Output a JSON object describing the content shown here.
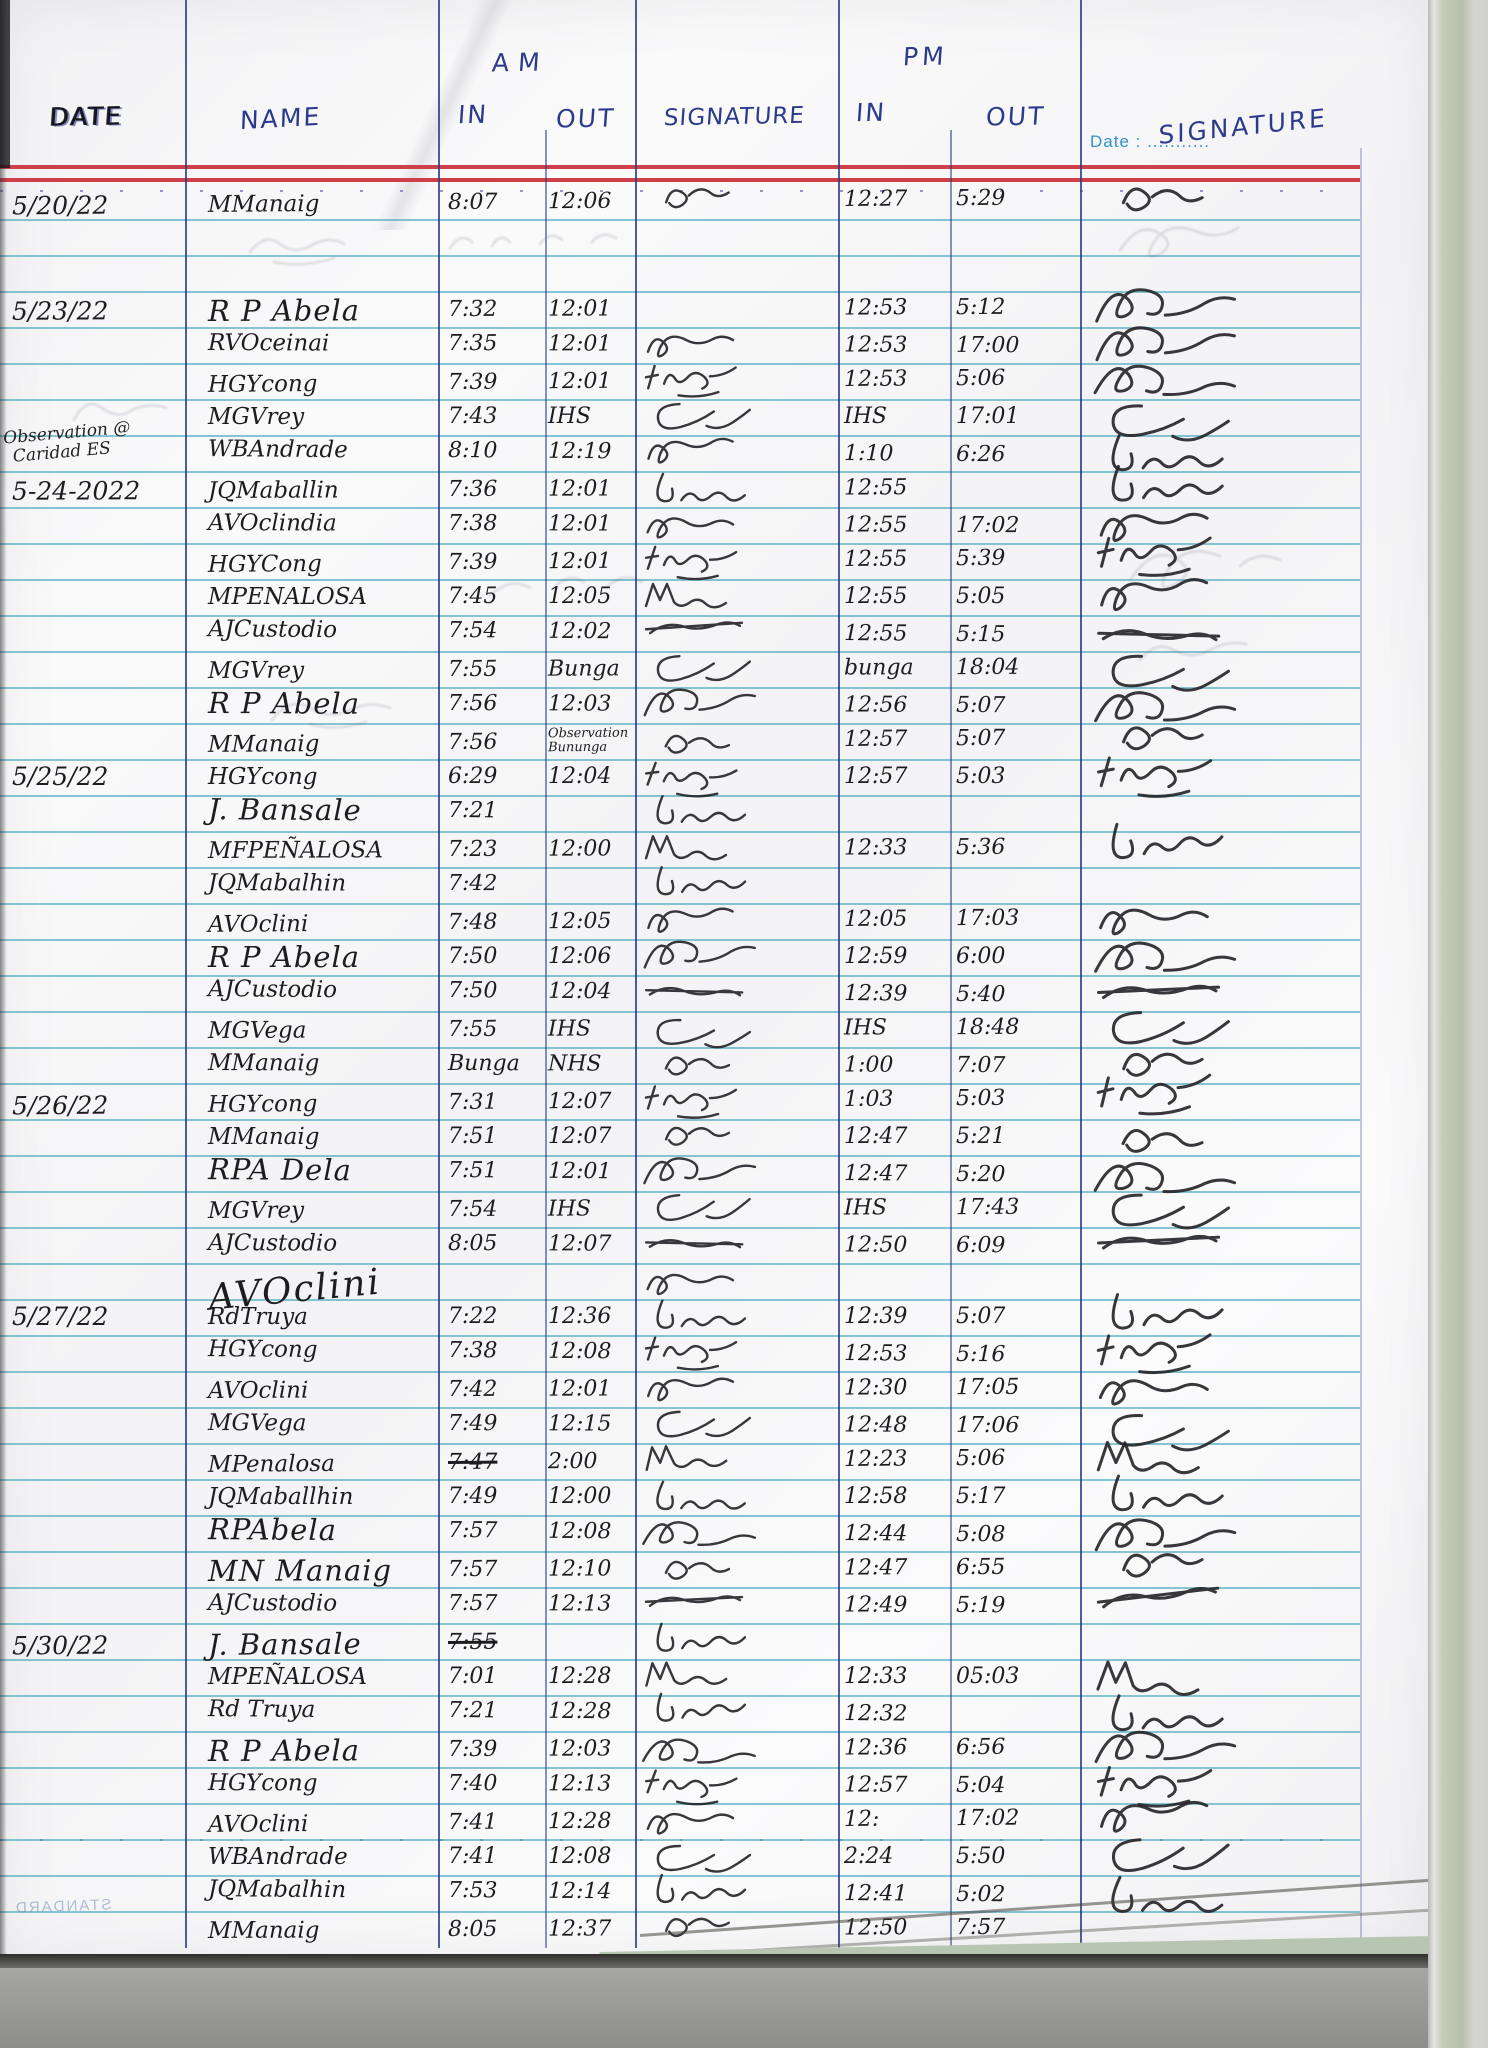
{
  "document": {
    "type_note": "handwritten attendance logbook page",
    "colors": {
      "ink": "#1d1d21",
      "blue_ink": "#2c3a8c",
      "red_rule": "#cd4049",
      "cyan_rule": "#46a8c0",
      "printed_blue": "#2f93c9",
      "paper": "#f6f6f7",
      "green_edge": "#b5c0a8"
    },
    "header": {
      "am_label": "AM",
      "pm_label": "PM",
      "date_col": "DATE",
      "name_col": "NAME",
      "am_in_col": "IN",
      "am_out_col": "OUT",
      "signature_col": "SIGNATURE",
      "pm_in_col": "IN",
      "pm_out_col": "OUT",
      "printed_date_label": "Date : ...........",
      "right_signature_col": "SIGNATURE"
    },
    "side_note": {
      "line1": "Observation @",
      "line2": "Caridad ES"
    },
    "watermark": "STANDARD",
    "rows": [
      {
        "date": "5/20/22",
        "name": "MManaig",
        "ain": "8:07",
        "aout": "12:06",
        "s1": "scrawl-rz",
        "pin": "12:27",
        "pout": "5:29",
        "s2": "scrawl-rz"
      },
      {},
      {},
      {
        "date": "5/23/22",
        "name": "R P Abela",
        "nstyle": "lg",
        "ain": "7:32",
        "aout": "12:01",
        "s1": "",
        "pin": "12:53",
        "pout": "5:12",
        "s2": "scrawl-bra"
      },
      {
        "name": "RVOceinai",
        "ain": "7:35",
        "aout": "12:01",
        "s1": "scrawl-loop",
        "pin": "12:53",
        "pout": "17:00",
        "s2": "scrawl-bra"
      },
      {
        "name": "HGYcong",
        "ain": "7:39",
        "aout": "12:01",
        "s1": "scrawl-heg",
        "pin": "12:53",
        "pout": "5:06",
        "s2": "scrawl-bra"
      },
      {
        "name": "MGVrey",
        "ain": "7:43",
        "aout": "IHS",
        "s1": "scrawl-clq",
        "pin": "IHS",
        "pout": "17:01",
        "s2": "scrawl-clq"
      },
      {
        "name": "WBAndrade",
        "ain": "8:10",
        "aout": "12:19",
        "s1": "scrawl-loop",
        "pin": "1:10",
        "pout": "6:26",
        "s2": "scrawl-mura"
      },
      {
        "date": "5-24-2022",
        "name": "JQMaballin",
        "ain": "7:36",
        "aout": "12:01",
        "s1": "scrawl-mura",
        "pin": "12:55",
        "pout": "",
        "s2": "scrawl-mura"
      },
      {
        "name": "AVOclindia",
        "ain": "7:38",
        "aout": "12:01",
        "s1": "scrawl-loop",
        "pin": "12:55",
        "pout": "17:02",
        "s2": "scrawl-loop"
      },
      {
        "name": "HGYCong",
        "ain": "7:39",
        "aout": "12:01",
        "s1": "scrawl-heg",
        "pin": "12:55",
        "pout": "5:39",
        "s2": "scrawl-heg"
      },
      {
        "name": "MPENALOSA",
        "ain": "7:45",
        "aout": "12:05",
        "s1": "scrawl-pen",
        "pin": "12:55",
        "pout": "5:05",
        "s2": "scrawl-loop"
      },
      {
        "name": "AJCustodio",
        "ain": "7:54",
        "aout": "12:02",
        "s1": "scrawl-x",
        "pin": "12:55",
        "pout": "5:15",
        "s2": "scrawl-x"
      },
      {
        "name": "MGVrey",
        "ain": "7:55",
        "aout": "Bunga",
        "s1": "scrawl-clq",
        "pin": "bunga",
        "pout": "18:04",
        "s2": "scrawl-clq"
      },
      {
        "name": "R P Abela",
        "nstyle": "lg",
        "ain": "7:56",
        "aout": "12:03",
        "s1": "scrawl-bra",
        "pin": "12:56",
        "pout": "5:07",
        "s2": "scrawl-bra"
      },
      {
        "name": "MManaig",
        "ain": "7:56",
        "aout": "Observation\nBununga",
        "aout_small": true,
        "s1": "scrawl-rz",
        "pin": "12:57",
        "pout": "5:07",
        "s2": "scrawl-rz"
      },
      {
        "date": "5/25/22",
        "name": "HGYcong",
        "ain": "6:29",
        "aout": "12:04",
        "s1": "scrawl-heg",
        "pin": "12:57",
        "pout": "5:03",
        "s2": "scrawl-heg"
      },
      {
        "name": "J. Bansale",
        "nstyle": "lg",
        "ain": "7:21",
        "aout": "",
        "s1": "scrawl-mura",
        "pin": "",
        "pout": "",
        "s2": ""
      },
      {
        "name": "MFPEÑALOSA",
        "ain": "7:23",
        "aout": "12:00",
        "s1": "scrawl-pen",
        "pin": "12:33",
        "pout": "5:36",
        "s2": "scrawl-mura"
      },
      {
        "name": "JQMabalhin",
        "ain": "7:42",
        "aout": "",
        "s1": "scrawl-mura",
        "pin": "",
        "pout": "",
        "s2": ""
      },
      {
        "name": "AVOclini",
        "ain": "7:48",
        "aout": "12:05",
        "s1": "scrawl-loop",
        "pin": "12:05",
        "pout": "17:03",
        "s2": "scrawl-loop"
      },
      {
        "name": "R P Abela",
        "nstyle": "lg",
        "ain": "7:50",
        "aout": "12:06",
        "s1": "scrawl-bra",
        "pin": "12:59",
        "pout": "6:00",
        "s2": "scrawl-bra"
      },
      {
        "name": "AJCustodio",
        "ain": "7:50",
        "aout": "12:04",
        "s1": "scrawl-x",
        "pin": "12:39",
        "pout": "5:40",
        "s2": "scrawl-x"
      },
      {
        "name": "MGVega",
        "ain": "7:55",
        "aout": "IHS",
        "s1": "scrawl-clq",
        "pin": "IHS",
        "pout": "18:48",
        "s2": "scrawl-clq"
      },
      {
        "name": "MManaig",
        "ain": "Bunga",
        "aout": "NHS",
        "s1": "scrawl-rz",
        "pin": "1:00",
        "pout": "7:07",
        "s2": "scrawl-rz"
      },
      {
        "date": "5/26/22",
        "name": "HGYcong",
        "ain": "7:31",
        "aout": "12:07",
        "s1": "scrawl-heg",
        "pin": "1:03",
        "pout": "5:03",
        "s2": "scrawl-heg"
      },
      {
        "name": "MManaig",
        "ain": "7:51",
        "aout": "12:07",
        "s1": "scrawl-rz",
        "pin": "12:47",
        "pout": "5:21",
        "s2": "scrawl-rz"
      },
      {
        "name": "RPA Dela",
        "nstyle": "lg",
        "ain": "7:51",
        "aout": "12:01",
        "s1": "scrawl-bra",
        "pin": "12:47",
        "pout": "5:20",
        "s2": "scrawl-bra"
      },
      {
        "name": "MGVrey",
        "ain": "7:54",
        "aout": "IHS",
        "s1": "scrawl-clq",
        "pin": "IHS",
        "pout": "17:43",
        "s2": "scrawl-clq"
      },
      {
        "name": "AJCustodio",
        "ain": "8:05",
        "aout": "12:07",
        "s1": "scrawl-x",
        "pin": "12:50",
        "pout": "6:09",
        "s2": "scrawl-x"
      },
      {
        "name": "AVOclini",
        "nstyle": "xl",
        "ain": "",
        "aout": "",
        "s1": "scrawl-loop",
        "pin": "",
        "pout": "",
        "s2": ""
      },
      {
        "date": "5/27/22",
        "name": "RdTruya",
        "ain": "7:22",
        "aout": "12:36",
        "s1": "scrawl-mura",
        "pin": "12:39",
        "pout": "5:07",
        "s2": "scrawl-mura"
      },
      {
        "name": "HGYcong",
        "ain": "7:38",
        "aout": "12:08",
        "s1": "scrawl-heg",
        "pin": "12:53",
        "pout": "5:16",
        "s2": "scrawl-heg"
      },
      {
        "name": "AVOclini",
        "ain": "7:42",
        "aout": "12:01",
        "s1": "scrawl-loop",
        "pin": "12:30",
        "pout": "17:05",
        "s2": "scrawl-loop"
      },
      {
        "name": "MGVega",
        "ain": "7:49",
        "aout": "12:15",
        "s1": "scrawl-clq",
        "pin": "12:48",
        "pout": "17:06",
        "s2": "scrawl-clq"
      },
      {
        "name": "MPenalosa",
        "ain": "7:47",
        "ain_struck": true,
        "aout": "2:00",
        "s1": "scrawl-pen",
        "pin": "12:23",
        "pout": "5:06",
        "s2": "scrawl-pen"
      },
      {
        "name": "JQMaballhin",
        "ain": "7:49",
        "aout": "12:00",
        "s1": "scrawl-mura",
        "pin": "12:58",
        "pout": "5:17",
        "s2": "scrawl-mura"
      },
      {
        "name": "RPAbela",
        "nstyle": "lg",
        "ain": "7:57",
        "aout": "12:08",
        "s1": "scrawl-bra",
        "pin": "12:44",
        "pout": "5:08",
        "s2": "scrawl-bra"
      },
      {
        "name": "MN Manaig",
        "nstyle": "lg",
        "ain": "7:57",
        "aout": "12:10",
        "s1": "scrawl-rz",
        "pin": "12:47",
        "pout": "6:55",
        "s2": "scrawl-rz"
      },
      {
        "name": "AJCustodio",
        "ain": "7:57",
        "aout": "12:13",
        "s1": "scrawl-x",
        "pin": "12:49",
        "pout": "5:19",
        "s2": "scrawl-x"
      },
      {
        "date": "5/30/22",
        "name": "J. Bansale",
        "nstyle": "lg",
        "ain": "7:55",
        "ain_struck": true,
        "aout": "",
        "s1": "scrawl-mura",
        "pin": "",
        "pout": "",
        "s2": ""
      },
      {
        "name": "MPEÑALOSA",
        "ain": "7:01",
        "aout": "12:28",
        "s1": "scrawl-pen",
        "pin": "12:33",
        "pout": "05:03",
        "s2": "scrawl-pen"
      },
      {
        "name": "Rd Truya",
        "ain": "7:21",
        "aout": "12:28",
        "s1": "scrawl-mura",
        "pin": "12:32",
        "pout": "",
        "s2": "scrawl-mura"
      },
      {
        "name": "R P Abela",
        "nstyle": "lg",
        "ain": "7:39",
        "aout": "12:03",
        "s1": "scrawl-bra",
        "pin": "12:36",
        "pout": "6:56",
        "s2": "scrawl-bra"
      },
      {
        "name": "HGYcong",
        "ain": "7:40",
        "aout": "12:13",
        "s1": "scrawl-heg",
        "pin": "12:57",
        "pout": "5:04",
        "s2": "scrawl-heg"
      },
      {
        "name": "AVOclini",
        "ain": "7:41",
        "aout": "12:28",
        "s1": "scrawl-loop",
        "pin": "12:",
        "pout": "17:02",
        "s2": "scrawl-loop"
      },
      {
        "name": "WBAndrade",
        "ain": "7:41",
        "aout": "12:08",
        "s1": "scrawl-clq",
        "pin": "2:24",
        "pout": "5:50",
        "s2": "scrawl-clq"
      },
      {
        "name": "JQMabalhin",
        "ain": "7:53",
        "aout": "12:14",
        "s1": "scrawl-mura",
        "pin": "12:41",
        "pout": "5:02",
        "s2": "scrawl-mura"
      },
      {
        "name": "MManaig",
        "ain": "8:05",
        "aout": "12:37",
        "s1": "scrawl-rz",
        "pin": "12:50",
        "pout": "7:57",
        "s2": ""
      }
    ]
  }
}
